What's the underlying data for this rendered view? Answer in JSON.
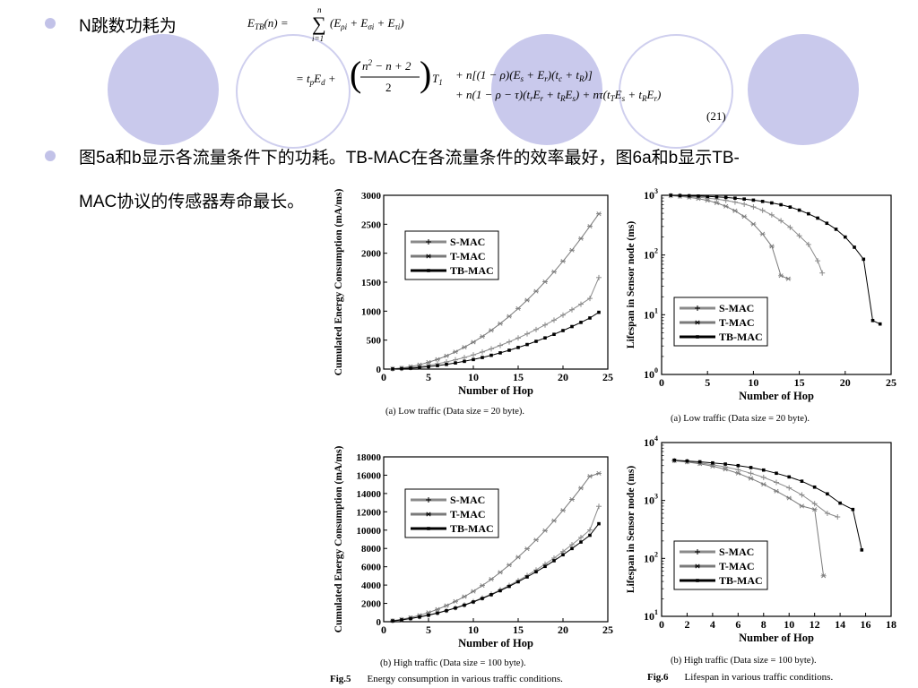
{
  "slide": {
    "bullet1": "N跳数功耗为",
    "bullet2_line1": "图5a和b显示各流量条件下的功耗。TB-MAC在各流量条件的效率最好，图6a和b显示TB-",
    "bullet2_line2": "MAC协议的传感器寿命最长。",
    "equation_number": "(21)",
    "colors": {
      "decor_circle": "#c9c9ec",
      "bullet": "#c2c2e8"
    }
  },
  "figures": {
    "fig5_label": "Fig.5",
    "fig5_caption": "Energy consumption in various traffic conditions.",
    "fig6_label": "Fig.6",
    "fig6_caption": "Lifespan in various traffic conditions."
  },
  "chart_data": [
    {
      "id": "fig5a",
      "type": "line",
      "caption": "(a) Low traffic (Data size = 20 byte).",
      "xlabel": "Number of Hop",
      "ylabel": "Cumulated Energy Consumption (mA/ms)",
      "xlim": [
        0,
        25
      ],
      "ylim": [
        0,
        3000
      ],
      "xticks": [
        0,
        5,
        10,
        15,
        20,
        25
      ],
      "yticks": [
        0,
        500,
        1000,
        1500,
        2000,
        2500,
        3000
      ],
      "log_y": false,
      "legend": "top-left",
      "series": [
        {
          "name": "S-MAC",
          "color": "#8a8a8a",
          "marker": "plus",
          "x": [
            1,
            2,
            3,
            4,
            5,
            6,
            7,
            8,
            9,
            10,
            11,
            12,
            13,
            14,
            15,
            16,
            17,
            18,
            19,
            20,
            21,
            22,
            23,
            24
          ],
          "y": [
            4,
            12,
            25,
            43,
            65,
            92,
            124,
            160,
            200,
            245,
            295,
            350,
            408,
            470,
            537,
            608,
            683,
            762,
            845,
            932,
            1025,
            1120,
            1220,
            1580
          ]
        },
        {
          "name": "T-MAC",
          "color": "#7a7a7a",
          "marker": "star",
          "x": [
            1,
            2,
            3,
            4,
            5,
            6,
            7,
            8,
            9,
            10,
            11,
            12,
            13,
            14,
            15,
            16,
            17,
            18,
            19,
            20,
            21,
            22,
            23,
            24
          ],
          "y": [
            5,
            19,
            42,
            75,
            117,
            168,
            228,
            298,
            377,
            465,
            562,
            669,
            785,
            911,
            1046,
            1190,
            1344,
            1507,
            1680,
            1862,
            2053,
            2254,
            2465,
            2680
          ]
        },
        {
          "name": "TB-MAC",
          "color": "#000000",
          "marker": "square",
          "x": [
            1,
            2,
            3,
            4,
            5,
            6,
            7,
            8,
            9,
            10,
            11,
            12,
            13,
            14,
            15,
            16,
            17,
            18,
            19,
            20,
            21,
            22,
            23,
            24
          ],
          "y": [
            2,
            7,
            15,
            27,
            42,
            60,
            81,
            106,
            134,
            165,
            200,
            238,
            280,
            325,
            373,
            424,
            479,
            538,
            600,
            665,
            734,
            806,
            882,
            980
          ]
        }
      ]
    },
    {
      "id": "fig6a",
      "type": "line",
      "caption": "(a) Low traffic (Data size = 20 byte).",
      "xlabel": "Number of Hop",
      "ylabel": "Lifespan in Sensor node (ms)",
      "xlim": [
        0,
        25
      ],
      "ylim": [
        1,
        1000
      ],
      "xticks": [
        0,
        5,
        10,
        15,
        20,
        25
      ],
      "yticks": [
        1,
        10,
        100,
        1000
      ],
      "ytick_exps": [
        "0",
        "1",
        "2",
        "3"
      ],
      "log_y": true,
      "legend": "center-right",
      "series": [
        {
          "name": "S-MAC",
          "color": "#8a8a8a",
          "marker": "plus",
          "x": [
            1,
            2,
            3,
            4,
            5,
            6,
            7,
            8,
            9,
            10,
            11,
            12,
            13,
            14,
            15,
            16,
            17,
            17.5
          ],
          "y": [
            990,
            975,
            955,
            930,
            900,
            865,
            820,
            770,
            710,
            640,
            560,
            470,
            375,
            290,
            210,
            150,
            80,
            50
          ]
        },
        {
          "name": "T-MAC",
          "color": "#7a7a7a",
          "marker": "star",
          "x": [
            1,
            2,
            3,
            4,
            5,
            6,
            7,
            8,
            9,
            10,
            11,
            12,
            13,
            13.8
          ],
          "y": [
            985,
            960,
            925,
            880,
            820,
            745,
            655,
            550,
            440,
            330,
            225,
            140,
            45,
            40
          ]
        },
        {
          "name": "TB-MAC",
          "color": "#000000",
          "marker": "square",
          "x": [
            1,
            2,
            3,
            4,
            5,
            6,
            7,
            8,
            9,
            10,
            11,
            12,
            13,
            14,
            15,
            16,
            17,
            18,
            19,
            20,
            21,
            22,
            23,
            23.8
          ],
          "y": [
            1000,
            990,
            980,
            970,
            955,
            940,
            920,
            895,
            865,
            830,
            790,
            745,
            695,
            635,
            565,
            490,
            415,
            340,
            270,
            200,
            135,
            85,
            8,
            7
          ]
        }
      ]
    },
    {
      "id": "fig5b",
      "type": "line",
      "caption": "(b) High traffic (Data size = 100 byte).",
      "xlabel": "Number of Hop",
      "ylabel": "Cumulated Energy Consumption (mA/ms)",
      "xlim": [
        0,
        25
      ],
      "ylim": [
        0,
        18000
      ],
      "xticks": [
        0,
        5,
        10,
        15,
        20,
        25
      ],
      "yticks": [
        0,
        2000,
        4000,
        6000,
        8000,
        10000,
        12000,
        14000,
        16000,
        18000
      ],
      "log_y": false,
      "legend": "top-left",
      "series": [
        {
          "name": "S-MAC",
          "color": "#8a8a8a",
          "marker": "plus",
          "x": [
            1,
            2,
            3,
            4,
            5,
            6,
            7,
            8,
            9,
            10,
            11,
            12,
            13,
            14,
            15,
            16,
            17,
            18,
            19,
            20,
            21,
            22,
            23,
            24
          ],
          "y": [
            100,
            220,
            370,
            540,
            740,
            970,
            1230,
            1520,
            1840,
            2200,
            2590,
            3010,
            3470,
            3960,
            4490,
            5050,
            5650,
            6280,
            6950,
            7660,
            8410,
            9200,
            10020,
            12600
          ]
        },
        {
          "name": "T-MAC",
          "color": "#7a7a7a",
          "marker": "star",
          "x": [
            1,
            2,
            3,
            4,
            5,
            6,
            7,
            8,
            9,
            10,
            11,
            12,
            13,
            14,
            15,
            16,
            17,
            18,
            19,
            20,
            21,
            22,
            23,
            24
          ],
          "y": [
            110,
            260,
            450,
            700,
            1000,
            1350,
            1760,
            2220,
            2740,
            3320,
            3950,
            4640,
            5390,
            6190,
            7050,
            7960,
            8930,
            9950,
            11030,
            12160,
            13350,
            14590,
            15880,
            16200
          ]
        },
        {
          "name": "TB-MAC",
          "color": "#000000",
          "marker": "square",
          "x": [
            1,
            2,
            3,
            4,
            5,
            6,
            7,
            8,
            9,
            10,
            11,
            12,
            13,
            14,
            15,
            16,
            17,
            18,
            19,
            20,
            21,
            22,
            23,
            24
          ],
          "y": [
            90,
            200,
            340,
            510,
            710,
            940,
            1200,
            1490,
            1810,
            2160,
            2540,
            2950,
            3390,
            3860,
            4360,
            4890,
            5450,
            6040,
            6660,
            7310,
            7990,
            8700,
            9440,
            10700
          ]
        }
      ]
    },
    {
      "id": "fig6b",
      "type": "line",
      "caption": "(b) High traffic (Data size = 100 byte).",
      "xlabel": "Number of Hop",
      "ylabel": "Lifespan in Sensor node (ms)",
      "xlim": [
        0,
        18
      ],
      "ylim": [
        10,
        10000
      ],
      "xticks": [
        0,
        2,
        4,
        6,
        8,
        10,
        12,
        14,
        16,
        18
      ],
      "yticks": [
        10,
        100,
        1000,
        10000
      ],
      "ytick_exps": [
        "1",
        "2",
        "3",
        "4"
      ],
      "log_y": true,
      "legend": "center-right",
      "series": [
        {
          "name": "S-MAC",
          "color": "#8a8a8a",
          "marker": "plus",
          "x": [
            1,
            2,
            3,
            4,
            5,
            6,
            7,
            8,
            9,
            10,
            11,
            12,
            13,
            13.8
          ],
          "y": [
            4900,
            4700,
            4450,
            4150,
            3800,
            3400,
            2950,
            2500,
            2050,
            1650,
            1250,
            880,
            600,
            520
          ]
        },
        {
          "name": "T-MAC",
          "color": "#7a7a7a",
          "marker": "star",
          "x": [
            1,
            2,
            3,
            4,
            5,
            6,
            7,
            8,
            9,
            10,
            11,
            12,
            12.7
          ],
          "y": [
            4850,
            4600,
            4300,
            3900,
            3450,
            2950,
            2400,
            1900,
            1450,
            1100,
            800,
            700,
            50
          ]
        },
        {
          "name": "TB-MAC",
          "color": "#000000",
          "marker": "square",
          "x": [
            1,
            2,
            3,
            4,
            5,
            6,
            7,
            8,
            9,
            10,
            11,
            12,
            13,
            14,
            15,
            15.7
          ],
          "y": [
            4950,
            4800,
            4650,
            4450,
            4250,
            4000,
            3700,
            3350,
            2950,
            2550,
            2150,
            1700,
            1300,
            900,
            700,
            140
          ]
        }
      ]
    }
  ]
}
